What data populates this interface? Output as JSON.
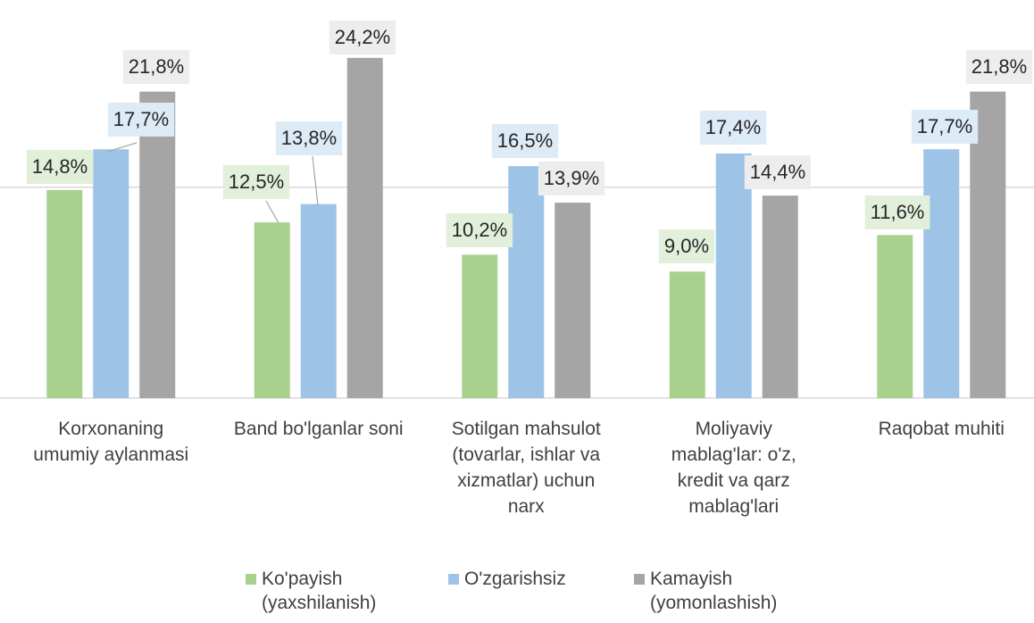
{
  "chart_data": {
    "type": "bar",
    "categories": [
      "Korxonaning umumiy aylanmasi",
      "Band bo'lganlar soni",
      "Sotilgan mahsulot (tovarlar, ishlar va xizmatlar) uchun narx",
      "Moliyaviy mablag'lar: o'z, kredit va qarz mablag'lari",
      "Raqobat muhiti"
    ],
    "series": [
      {
        "name": "Ko'payish (yaxshilanish)",
        "color": "#a9d18e",
        "label_fill": "#e2efda",
        "values": [
          14.8,
          12.5,
          10.2,
          9.0,
          11.6
        ],
        "value_labels": [
          "14,8%",
          "12,5%",
          "10,2%",
          "9,0%",
          "11,6%"
        ]
      },
      {
        "name": "O'zgarishsiz",
        "color": "#9dc3e6",
        "label_fill": "#ddebf7",
        "values": [
          17.7,
          13.8,
          16.5,
          17.4,
          17.7
        ],
        "value_labels": [
          "17,7%",
          "13,8%",
          "16,5%",
          "17,4%",
          "17,7%"
        ]
      },
      {
        "name": "Kamayish (yomonlashish)",
        "color": "#a5a5a5",
        "label_fill": "#ededed",
        "values": [
          21.8,
          24.2,
          13.9,
          14.4,
          21.8
        ],
        "value_labels": [
          "21,8%",
          "24,2%",
          "13,9%",
          "14,4%",
          "21,8%"
        ]
      }
    ],
    "ylim": [
      0,
      28
    ],
    "yticks": [
      0,
      15
    ],
    "grid": true
  }
}
